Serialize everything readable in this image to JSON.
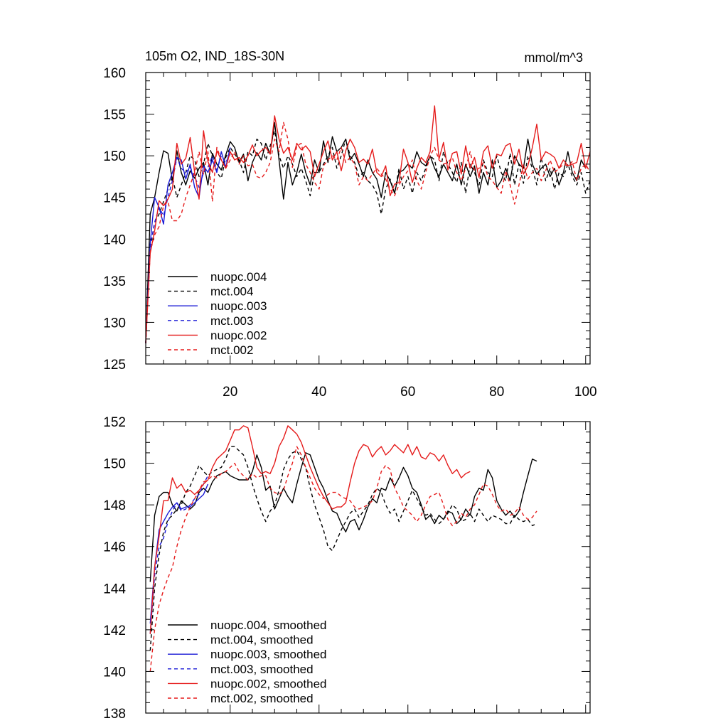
{
  "chart_data": [
    {
      "type": "line",
      "title": "105m O2, IND_18S-30N",
      "units": "mmol/m^3",
      "xlim": [
        1,
        101
      ],
      "ylim": [
        125,
        160
      ],
      "xticks": [
        20,
        40,
        60,
        80,
        100
      ],
      "yticks": [
        125,
        130,
        135,
        140,
        145,
        150,
        155,
        160
      ],
      "grid": false,
      "legend_position": "lower-left",
      "series": [
        {
          "name": "nuopc.004",
          "color": "#000000",
          "dash": false,
          "x_start": 1,
          "values": [
            127.5,
            143,
            145,
            148,
            150.6,
            150.3,
            147,
            150.6,
            148,
            146.5,
            148.2,
            147.3,
            148.5,
            149.2,
            146.5,
            150.3,
            149,
            148.3,
            150.1,
            151.7,
            151,
            149.2,
            150.2,
            147,
            149.2,
            150.4,
            149.5,
            151.5,
            150.2,
            154,
            149.5,
            144.8,
            149.2,
            146.5,
            148,
            150.2,
            148,
            146.5,
            149.5,
            148,
            151.8,
            149.2,
            152.3,
            150.5,
            151,
            152,
            149.5,
            150.3,
            149,
            147.5,
            149.5,
            148,
            147.2,
            145,
            148,
            147,
            145.5,
            148,
            148.3,
            149,
            148.5,
            150.5,
            149.2,
            148.8,
            150,
            148.5,
            147.5,
            149,
            148,
            147,
            149,
            146.5,
            149,
            147.5,
            148.8,
            145.5,
            148,
            146.5,
            149.5,
            146.2,
            147,
            148.5,
            147,
            150,
            149,
            148.5,
            152,
            149,
            147.8,
            148.5,
            149,
            147.5,
            148.5,
            146.5,
            148,
            150.5,
            148,
            147,
            149.5,
            148.5
          ]
        },
        {
          "name": "mct.004",
          "color": "#000000",
          "dash": true,
          "x_start": 1,
          "values": [
            127.5,
            139,
            142,
            143,
            144.5,
            146,
            147.5,
            145,
            146.5,
            148,
            150,
            149.5,
            147.5,
            149,
            151.5,
            150,
            148,
            147.3,
            149.8,
            151,
            150.2,
            149.5,
            148,
            150.5,
            150,
            152,
            151.5,
            149.5,
            151.2,
            153,
            150,
            148.5,
            150,
            149,
            147.5,
            148.5,
            147,
            145.2,
            148,
            148,
            149,
            150,
            151,
            148.5,
            150,
            152,
            150,
            149.2,
            147.5,
            148,
            147,
            146.5,
            145.5,
            143,
            146,
            147.2,
            145.5,
            148.5,
            146,
            147.5,
            145.5,
            148,
            147,
            148.5,
            150,
            149.5,
            147,
            150.5,
            149,
            148,
            146.8,
            149.2,
            145.5,
            149,
            148,
            146.5,
            149.5,
            148,
            147.5,
            150,
            148,
            147,
            150.3,
            146.5,
            149,
            146.7,
            150,
            148.5,
            146.5,
            149.8,
            147,
            148.5,
            146,
            148,
            147.5,
            149,
            147.5,
            146.5,
            148,
            145.5,
            147
          ]
        },
        {
          "name": "nuopc.003",
          "color": "#1a1ad6",
          "dash": false,
          "x_start": 1,
          "values": [
            127.5,
            139.5,
            145,
            143.8,
            141.8,
            146.5,
            148,
            149.8,
            149.5,
            147.2,
            149,
            146.2,
            145,
            148.8,
            148,
            149.5,
            148,
            150.5,
            148.6,
            151
          ]
        },
        {
          "name": "mct.003",
          "color": "#1a1ad6",
          "dash": true,
          "x_start": 1,
          "values": [
            127.5,
            139,
            142,
            143.8,
            142.8,
            145,
            147,
            149.8,
            148.5,
            148,
            148.6,
            147.5,
            146.2,
            148,
            148.6,
            150,
            148.3,
            150,
            149.2,
            150.2
          ]
        },
        {
          "name": "nuopc.002",
          "color": "#e51b1b",
          "dash": false,
          "x_start": 1,
          "values": [
            127.5,
            138.3,
            141,
            144.6,
            144,
            144.8,
            146,
            151.5,
            149,
            149.7,
            152.2,
            148,
            144.8,
            153,
            149.3,
            148,
            150.6,
            149.5,
            148.5,
            150.5,
            149.5,
            149.8,
            149.2,
            150,
            151.3,
            150,
            150.6,
            151,
            150.2,
            154.8,
            152,
            150.3,
            151,
            149.5,
            151.5,
            150.7,
            151.2,
            150.5,
            147.5,
            149,
            150.5,
            151.8,
            149.5,
            150.5,
            148.2,
            150.6,
            152,
            151,
            149.2,
            149.6,
            149,
            150.8,
            148,
            147.5,
            148.8,
            145.2,
            146.6,
            146.8,
            150.8,
            149.2,
            146.8,
            148.5,
            149.8,
            149.2,
            150.5,
            156,
            149.6,
            151.6,
            148.3,
            150.3,
            150.5,
            147.8,
            151.2,
            148.5,
            149.8,
            147.4,
            150.5,
            151.2,
            148.5,
            150.2,
            150,
            151.2,
            151.5,
            149,
            150.8,
            147.8,
            148.8,
            151,
            153.8,
            149.5,
            150.5,
            150.2,
            149.8,
            148.5,
            149.5,
            148.8,
            149,
            149.2,
            151.5,
            148.5,
            150.5
          ]
        },
        {
          "name": "mct.002",
          "color": "#e51b1b",
          "dash": true,
          "x_start": 1,
          "values": [
            127.5,
            138.5,
            140.5,
            141.5,
            144,
            144.5,
            142.2,
            142.2,
            143,
            145,
            146.5,
            148,
            150.5,
            147.8,
            150.5,
            144.5,
            151,
            149.5,
            148.5,
            149.5,
            150.5,
            149,
            150,
            148.8,
            149,
            147.5,
            147.3,
            148,
            149.2,
            152,
            150.5,
            154,
            152,
            148.6,
            151.2,
            151.5,
            149,
            148,
            146.8,
            146,
            148.8,
            149.5,
            150,
            149.5,
            151,
            149.2,
            149.8,
            149,
            146.5,
            147.5,
            147,
            147.8,
            148.5,
            147.8,
            147.2,
            146,
            145.2,
            146.5,
            147.5,
            148.2,
            149.5,
            147,
            146,
            148,
            150,
            151,
            149.5,
            149,
            149.2,
            149.8,
            148,
            147,
            148.5,
            150.5,
            148.2,
            148.5,
            149.2,
            147.5,
            147,
            146.2,
            145.5,
            148.2,
            146.5,
            144.2,
            146.5,
            149,
            147.2,
            148,
            148.5,
            147,
            148.2,
            149.5,
            148,
            148.5,
            149,
            148.8,
            149.3,
            147,
            148.5,
            149,
            148
          ]
        }
      ]
    },
    {
      "type": "line",
      "xlim": [
        1,
        101
      ],
      "ylim": [
        138,
        152
      ],
      "yticks": [
        138,
        140,
        142,
        144,
        146,
        148,
        150,
        152
      ],
      "grid": false,
      "legend_position": "lower-left",
      "series": [
        {
          "name": "nuopc.004, smoothed",
          "color": "#000000",
          "dash": false,
          "x_start": 2,
          "values": [
            144.3,
            147.5,
            148.4,
            148.6,
            148.6,
            148,
            147.7,
            148.2,
            148,
            147.8,
            148,
            148.6,
            148.8,
            148.6,
            149.1,
            149.4,
            149.5,
            149.6,
            149.4,
            149.3,
            149.2,
            149.2,
            149.2,
            149.6,
            150.4,
            149.8,
            148.7,
            148.9,
            147.8,
            148.3,
            148.8,
            148.4,
            148.1,
            149,
            149.8,
            150.5,
            150.4,
            149.8,
            149.2,
            148.8,
            148.2,
            147.7,
            147.6,
            147.1,
            146.7,
            147.2,
            147.3,
            146.8,
            147.3,
            147.9,
            148.3,
            148.1,
            148.8,
            148.7,
            149.3,
            148.9,
            149.3,
            149.8,
            149.4,
            148.8,
            148.6,
            148,
            147.3,
            147.5,
            147.1,
            147.5,
            147.3,
            147.7,
            147.6,
            147.1,
            147.3,
            147.8,
            147.5,
            148.4,
            148.8,
            148.7,
            149.7,
            149.3,
            148.2,
            147.8,
            147.5,
            147.7,
            147.4,
            147.7,
            148.6,
            149.4,
            150.2,
            150.1
          ]
        },
        {
          "name": "mct.004, smoothed",
          "color": "#000000",
          "dash": true,
          "x_start": 2,
          "values": [
            141,
            144,
            145.6,
            146.7,
            147.3,
            147.5,
            147.8,
            148,
            148.6,
            148.9,
            149.4,
            149.9,
            149.6,
            149.4,
            149.6,
            149.7,
            149.8,
            150.2,
            150.8,
            150.8,
            150.6,
            150.4,
            149.8,
            149,
            148.3,
            147.7,
            147.2,
            147.7,
            148,
            148.7,
            149.7,
            150.2,
            150.5,
            150.6,
            150.2,
            149.8,
            148.8,
            148,
            147.4,
            146.8,
            146,
            145.8,
            146.3,
            146.8,
            147.2,
            147.6,
            147.8,
            147.4,
            147.7,
            148,
            148.5,
            148.8,
            148.6,
            148,
            147.6,
            147.8,
            147.2,
            147.7,
            148.2,
            148.7,
            148.3,
            147.9,
            147.5,
            147.6,
            147.3,
            147.1,
            147.3,
            147.6,
            148,
            147.8,
            147.2,
            147.3,
            147.6,
            147.2,
            147.8,
            147.5,
            147.2,
            147.5,
            147.4,
            147.3,
            147.1,
            147.1,
            147.5,
            147.3,
            147.2,
            147.3,
            147,
            147.1
          ]
        },
        {
          "name": "nuopc.003, smoothed",
          "color": "#1a1ad6",
          "dash": false,
          "x_start": 2,
          "values": [
            142.3,
            145,
            146.8,
            147.2,
            147.6,
            147.9,
            148.1,
            147.8,
            147.9,
            147.9,
            148.1,
            148.3,
            148.5,
            149
          ]
        },
        {
          "name": "mct.003, smoothed",
          "color": "#1a1ad6",
          "dash": true,
          "x_start": 2,
          "values": [
            141.8,
            144.6,
            146,
            146.4,
            147.2,
            147.7,
            148.1,
            147.7,
            147.8,
            148,
            148.3,
            148.5,
            149,
            149.4
          ]
        },
        {
          "name": "nuopc.002, smoothed",
          "color": "#e51b1b",
          "dash": false,
          "x_start": 2,
          "values": [
            141.8,
            145,
            146.5,
            148.2,
            148.2,
            149.3,
            148.8,
            149,
            148.6,
            148.7,
            148.5,
            148.7,
            149,
            149.2,
            149.8,
            150.2,
            150.4,
            150.6,
            151.1,
            151.6,
            151.6,
            151.8,
            151.7,
            150.8,
            149.8,
            149.5,
            149.6,
            149.5,
            150,
            150.8,
            151.2,
            151.8,
            151.6,
            151.4,
            151,
            150.4,
            149.8,
            149.3,
            148.8,
            148.4,
            148.1,
            147.8,
            147.9,
            147.9,
            148.1,
            149.1,
            150,
            150.6,
            150.9,
            150.8,
            150.3,
            150.6,
            150.8,
            150.4,
            150.6,
            150.9,
            150.7,
            150.5,
            150.9,
            150.4,
            150.8,
            150.3,
            150.2,
            150.5,
            150.4,
            150.1,
            150.4,
            149.9,
            149.5,
            149.7,
            149.3,
            149.5,
            149.6
          ]
        },
        {
          "name": "mct.002, smoothed",
          "color": "#e51b1b",
          "dash": true,
          "x_start": 2,
          "values": [
            140,
            142,
            143.2,
            143.9,
            144.5,
            145,
            146,
            146.8,
            147.4,
            147.9,
            148.3,
            148.7,
            149.1,
            149.2,
            149.4,
            149.3,
            149.5,
            149.6,
            149.8,
            150,
            149.6,
            149.4,
            149.2,
            149.5,
            149.3,
            149.4,
            149.4,
            148.8,
            148.6,
            148.5,
            148.7,
            149.4,
            150,
            150.8,
            150.4,
            149.8,
            149.3,
            148.8,
            148.5,
            148.3,
            148.5,
            148.6,
            148.6,
            148.4,
            148.3,
            148.2,
            147.9,
            147.8,
            147.9,
            148,
            148.2,
            148.8,
            149.6,
            149.9,
            149.7,
            148.8,
            148.4,
            147.9,
            147.7,
            147.5,
            147.2,
            147.5,
            148,
            148.4,
            148.5,
            148.6,
            148,
            147.3,
            147,
            147.2,
            147.6,
            147.4,
            147.8,
            148,
            148.5,
            149,
            148.9,
            148.5,
            148,
            147.7,
            147.8,
            147.5,
            147.6,
            147.9,
            147.5,
            147.3,
            147.4,
            147.7
          ]
        }
      ]
    }
  ]
}
